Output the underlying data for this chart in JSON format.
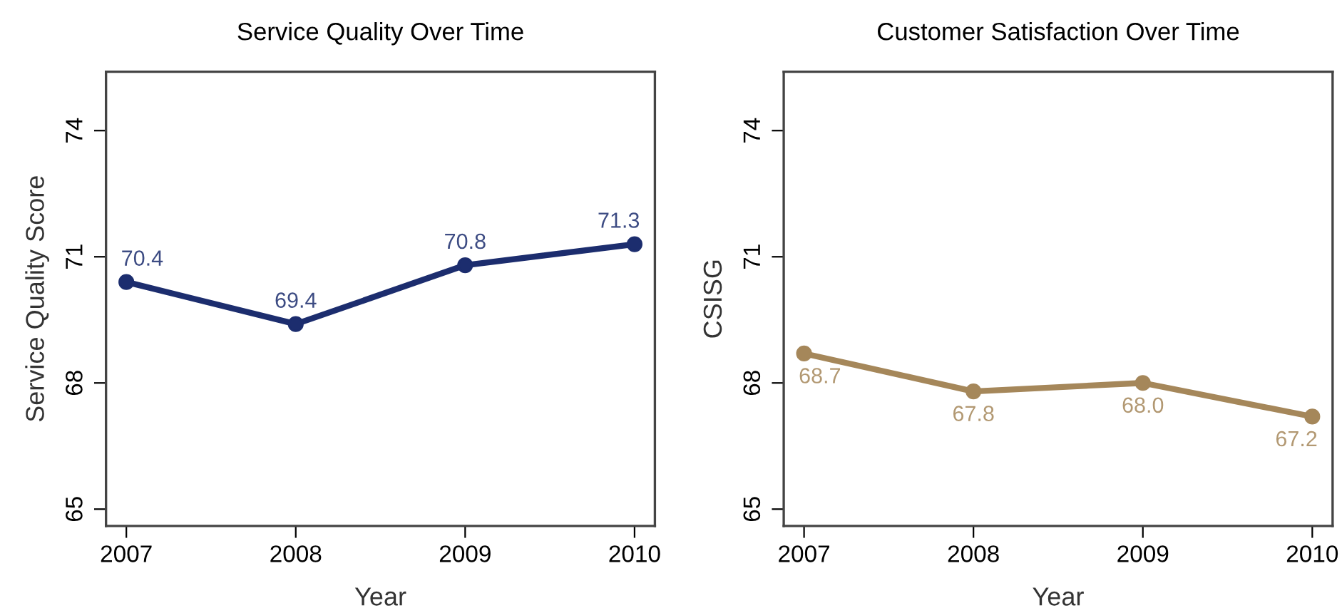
{
  "chart_data": [
    {
      "type": "line",
      "title": "Service Quality Over Time",
      "xlabel": "Year",
      "ylabel": "Service Quality Score",
      "x": [
        2007,
        2008,
        2009,
        2010
      ],
      "series": [
        {
          "color": "#1c2d6e",
          "values": [
            70.4,
            69.4,
            70.8,
            71.3
          ],
          "value_labels": [
            "70.4",
            "69.4",
            "70.8",
            "71.3"
          ]
        }
      ],
      "xlim": [
        2006.88,
        2010.12
      ],
      "xticks": [
        2007,
        2008,
        2009,
        2010
      ],
      "ylim": [
        64.6,
        75.4
      ],
      "yticks": [
        65,
        68,
        71,
        74
      ],
      "marker": "circle",
      "line_style": "solid",
      "grid": false,
      "legend": false
    },
    {
      "type": "line",
      "title": "Customer Satisfaction Over Time",
      "xlabel": "Year",
      "ylabel": "CSISG",
      "x": [
        2007,
        2008,
        2009,
        2010
      ],
      "series": [
        {
          "color": "#a5875a",
          "values": [
            68.7,
            67.8,
            68.0,
            67.2
          ],
          "value_labels": [
            "68.7",
            "67.8",
            "68.0",
            "67.2"
          ]
        }
      ],
      "xlim": [
        2006.88,
        2010.12
      ],
      "xticks": [
        2007,
        2008,
        2009,
        2010
      ],
      "ylim": [
        64.6,
        75.4
      ],
      "yticks": [
        65,
        68,
        71,
        74
      ],
      "marker": "circle",
      "line_style": "solid",
      "grid": false,
      "legend": false
    }
  ]
}
